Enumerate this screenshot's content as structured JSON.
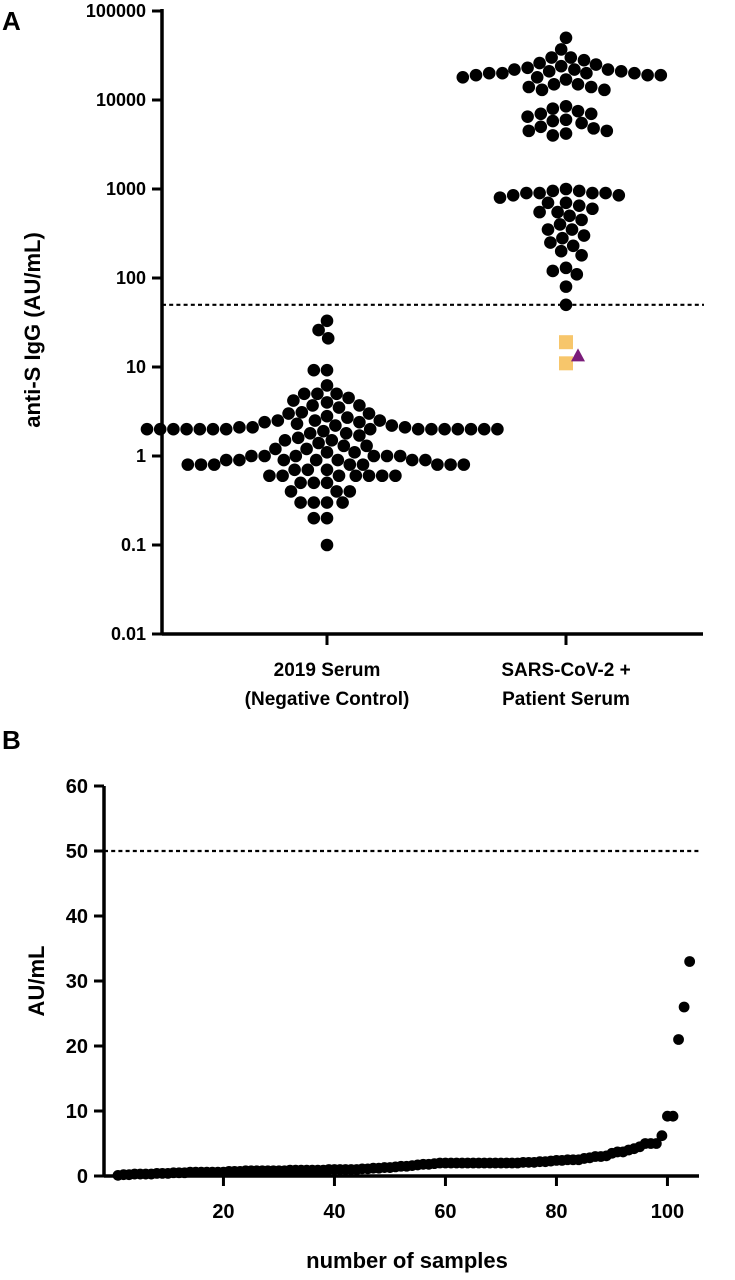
{
  "panels": {
    "a_letter": "A",
    "b_letter": "B"
  },
  "colors": {
    "point": "#000000",
    "square_marker": "#F7C66B",
    "triangle_marker": "#7A1C7A"
  },
  "chart_data": [
    {
      "panel": "A",
      "type": "scatter",
      "ylabel": "anti-S IgG (AU/mL)",
      "yscale": "log",
      "ylim": [
        0.01,
        100000
      ],
      "yticks": [
        "0.01",
        "0.1",
        "1",
        "10",
        "100",
        "1000",
        "10000",
        "100000"
      ],
      "categories": [
        "2019 Serum\n(Negative Control)",
        "SARS-CoV-2 +\nPatient Serum"
      ],
      "category_lines": [
        [
          "2019 Serum",
          "(Negative Control)"
        ],
        [
          "SARS-CoV-2 +",
          "Patient Serum"
        ]
      ],
      "threshold": 50,
      "grid": false,
      "series": [
        {
          "category": 0,
          "marker": "circle",
          "color": "#000000",
          "values": [
            33,
            26,
            21,
            9.2,
            9.2,
            6.2,
            5,
            5,
            5,
            4.5,
            4.2,
            4,
            3.7,
            3.7,
            3.5,
            3.1,
            3,
            3,
            2.8,
            2.7,
            2.5,
            2.5,
            2.5,
            2.4,
            2.4,
            2.3,
            2.2,
            2.2,
            2.1,
            2.1,
            2.1,
            2,
            2,
            2,
            2,
            2,
            2,
            2,
            2,
            2,
            2,
            2,
            2,
            2,
            2,
            2,
            1.9,
            1.8,
            1.8,
            1.7,
            1.6,
            1.5,
            1.5,
            1.4,
            1.3,
            1.3,
            1.2,
            1.2,
            1.1,
            1.1,
            1,
            1,
            1,
            1,
            1,
            1,
            0.9,
            0.9,
            0.9,
            0.9,
            0.9,
            0.9,
            0.9,
            0.8,
            0.8,
            0.8,
            0.8,
            0.8,
            0.8,
            0.8,
            0.8,
            0.7,
            0.7,
            0.7,
            0.6,
            0.6,
            0.6,
            0.6,
            0.6,
            0.6,
            0.6,
            0.5,
            0.5,
            0.5,
            0.4,
            0.4,
            0.4,
            0.3,
            0.3,
            0.3,
            0.3,
            0.2,
            0.2,
            0.1
          ]
        },
        {
          "category": 1,
          "marker": "circle",
          "color": "#000000",
          "values": [
            50000,
            37000,
            30000,
            30000,
            28000,
            26000,
            25000,
            24000,
            23000,
            22000,
            22000,
            22000,
            21000,
            21000,
            20000,
            20000,
            20000,
            20000,
            19000,
            19000,
            19000,
            18000,
            18000,
            17000,
            15000,
            15000,
            14000,
            14000,
            13000,
            13000,
            8500,
            8000,
            7500,
            7000,
            7000,
            6500,
            6000,
            5800,
            5500,
            5000,
            4800,
            4500,
            4500,
            4200,
            4000,
            1000,
            950,
            950,
            900,
            900,
            900,
            900,
            850,
            850,
            800,
            700,
            700,
            650,
            600,
            550,
            550,
            500,
            450,
            400,
            350,
            350,
            300,
            280,
            250,
            230,
            200,
            180,
            130,
            120,
            110,
            80,
            50
          ]
        },
        {
          "category": 1,
          "marker": "square",
          "color": "#F7C66B",
          "values": [
            19,
            11
          ]
        },
        {
          "category": 1,
          "marker": "triangle",
          "color": "#7A1C7A",
          "values": [
            13.5
          ]
        }
      ]
    },
    {
      "panel": "B",
      "type": "scatter",
      "xlabel": "number of samples",
      "ylabel": "AU/mL",
      "xlim": [
        1,
        104
      ],
      "ylim": [
        0,
        60
      ],
      "xticks": [
        20,
        40,
        60,
        80,
        100
      ],
      "yticks": [
        0,
        10,
        20,
        30,
        40,
        50,
        60
      ],
      "threshold": 50,
      "grid": false,
      "x": [
        1,
        2,
        3,
        4,
        5,
        6,
        7,
        8,
        9,
        10,
        11,
        12,
        13,
        14,
        15,
        16,
        17,
        18,
        19,
        20,
        21,
        22,
        23,
        24,
        25,
        26,
        27,
        28,
        29,
        30,
        31,
        32,
        33,
        34,
        35,
        36,
        37,
        38,
        39,
        40,
        41,
        42,
        43,
        44,
        45,
        46,
        47,
        48,
        49,
        50,
        51,
        52,
        53,
        54,
        55,
        56,
        57,
        58,
        59,
        60,
        61,
        62,
        63,
        64,
        65,
        66,
        67,
        68,
        69,
        70,
        71,
        72,
        73,
        74,
        75,
        76,
        77,
        78,
        79,
        80,
        81,
        82,
        83,
        84,
        85,
        86,
        87,
        88,
        89,
        90,
        91,
        92,
        93,
        94,
        95,
        96,
        97,
        98,
        99,
        100,
        101,
        102,
        103,
        104
      ],
      "values": [
        0.1,
        0.2,
        0.2,
        0.3,
        0.3,
        0.3,
        0.3,
        0.4,
        0.4,
        0.4,
        0.5,
        0.5,
        0.5,
        0.6,
        0.6,
        0.6,
        0.6,
        0.6,
        0.6,
        0.6,
        0.7,
        0.7,
        0.7,
        0.8,
        0.8,
        0.8,
        0.8,
        0.8,
        0.8,
        0.8,
        0.8,
        0.9,
        0.9,
        0.9,
        0.9,
        0.9,
        0.9,
        0.9,
        1.0,
        1.0,
        1.0,
        1.0,
        1.0,
        1.0,
        1.1,
        1.1,
        1.2,
        1.2,
        1.3,
        1.3,
        1.4,
        1.5,
        1.5,
        1.6,
        1.7,
        1.8,
        1.8,
        1.9,
        2.0,
        2.0,
        2.0,
        2.0,
        2.0,
        2.0,
        2.0,
        2.0,
        2.0,
        2.0,
        2.0,
        2.0,
        2.0,
        2.0,
        2.0,
        2.1,
        2.1,
        2.1,
        2.2,
        2.2,
        2.3,
        2.4,
        2.4,
        2.5,
        2.5,
        2.5,
        2.7,
        2.8,
        3.0,
        3.0,
        3.1,
        3.5,
        3.7,
        3.7,
        4.0,
        4.2,
        4.5,
        5.0,
        5.0,
        5.0,
        6.2,
        9.2,
        9.2,
        21,
        26,
        33
      ]
    }
  ]
}
